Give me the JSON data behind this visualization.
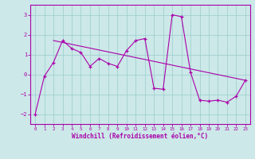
{
  "main_x": [
    0,
    1,
    2,
    3,
    4,
    5,
    6,
    7,
    8,
    9,
    10,
    11,
    12,
    13,
    14,
    15,
    16,
    17,
    18,
    19,
    20,
    21,
    22,
    23
  ],
  "main_y": [
    -2.0,
    -0.1,
    0.6,
    1.7,
    1.3,
    1.1,
    0.4,
    0.8,
    0.55,
    0.4,
    1.2,
    1.7,
    1.8,
    -0.7,
    -0.75,
    3.0,
    2.9,
    0.1,
    -1.3,
    -1.35,
    -1.3,
    -1.4,
    -1.1,
    -0.3
  ],
  "trend_x": [
    2,
    23
  ],
  "trend_y": [
    1.7,
    -0.3
  ],
  "line_color": "#aa00aa",
  "bg_color": "#cce8e8",
  "grid_color": "#99cccc",
  "ylim": [
    -2.5,
    3.5
  ],
  "xlim": [
    -0.5,
    23.5
  ],
  "xlabel": "Windchill (Refroidissement éolien,°C)",
  "yticks": [
    -2,
    -1,
    0,
    1,
    2,
    3
  ],
  "xticks": [
    0,
    1,
    2,
    3,
    4,
    5,
    6,
    7,
    8,
    9,
    10,
    11,
    12,
    13,
    14,
    15,
    16,
    17,
    18,
    19,
    20,
    21,
    22,
    23
  ]
}
